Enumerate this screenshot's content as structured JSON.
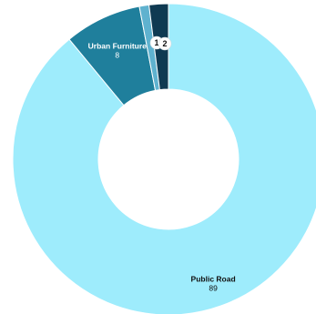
{
  "chart_data": {
    "type": "pie",
    "variant": "donut",
    "slices": [
      {
        "label": "Public Road",
        "value": 89,
        "color": "#9eecfc",
        "label_color": "#111111",
        "label_style": "inside"
      },
      {
        "label": "Urban Furniture",
        "value": 8,
        "color": "#1f7f9c",
        "label_color": "#ffffff",
        "label_style": "inside"
      },
      {
        "label": "",
        "value": 1,
        "color": "#5fb2cf",
        "label_color": "#111111",
        "label_style": "bubble"
      },
      {
        "label": "",
        "value": 2,
        "color": "#0f3a52",
        "label_color": "#111111",
        "label_style": "bubble"
      }
    ]
  }
}
